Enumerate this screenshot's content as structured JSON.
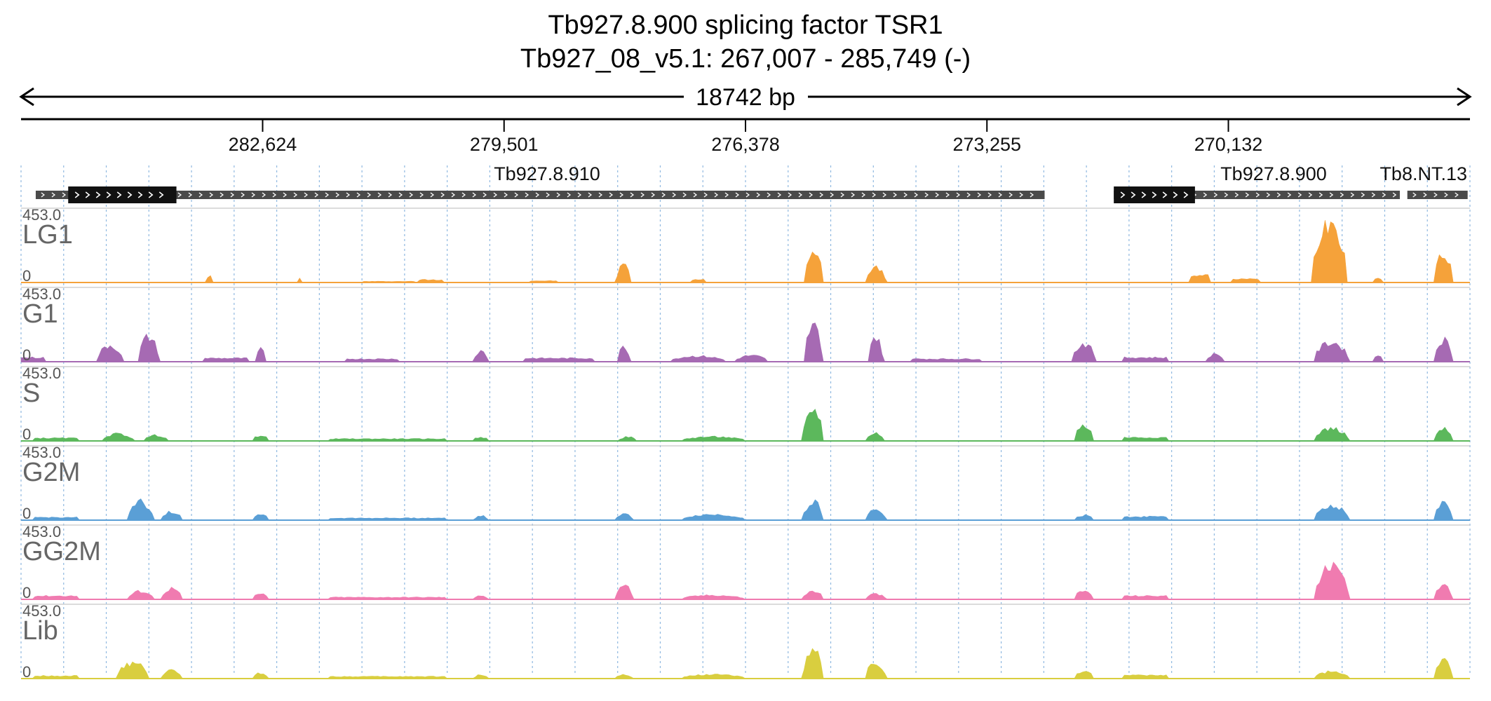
{
  "title": {
    "line1": "Tb927.8.900  splicing factor TSR1",
    "line2": "Tb927_08_v5.1: 267,007 - 285,749 (-)"
  },
  "span_label": "18742 bp",
  "region": {
    "start": 267007,
    "end": 285749,
    "strand": "-"
  },
  "ticks": [
    {
      "label": "282,624",
      "value": 282624
    },
    {
      "label": "279,501",
      "value": 279501
    },
    {
      "label": "276,378",
      "value": 276378
    },
    {
      "label": "273,255",
      "value": 273255
    },
    {
      "label": "270,132",
      "value": 270132
    }
  ],
  "genes": [
    {
      "name": "Tb927.8.910",
      "start": 272509,
      "end": 285559,
      "cds_start": 283739,
      "cds_end": 285139
    },
    {
      "name": "Tb927.8.900",
      "start": 267914,
      "end": 271614,
      "cds_start": 270564,
      "cds_end": 271614
    },
    {
      "name": "Tb8.NT.13",
      "start": 267037,
      "end": 267817
    }
  ],
  "colors": {
    "LG1": "#f5a23a",
    "G1": "#a66ab3",
    "S": "#5cb85c",
    "G2M": "#5a9fd6",
    "GG2M": "#f07bb0",
    "Lib": "#d9ce3f",
    "gene_body": "#4a4a4a",
    "cds": "#111111",
    "grid": "#8fb8e0"
  },
  "chart_data": {
    "type": "area",
    "x_label": "Genomic coordinate (bp), reverse strand",
    "x_range": [
      267007,
      285749
    ],
    "y_range": [
      0,
      453.0
    ],
    "scale_max_label": "453.0",
    "scale_min_label": "0",
    "series": [
      {
        "name": "LG1",
        "peaks": [
          {
            "pos": 283300,
            "width": 70,
            "height": 45,
            "shape": "block"
          },
          {
            "pos": 282150,
            "width": 60,
            "height": 30,
            "shape": "block"
          },
          {
            "pos": 281000,
            "width": 700,
            "height": 8,
            "shape": "flat"
          },
          {
            "pos": 280450,
            "width": 300,
            "height": 20,
            "shape": "flat"
          },
          {
            "pos": 279000,
            "width": 350,
            "height": 12,
            "shape": "flat"
          },
          {
            "pos": 277950,
            "width": 180,
            "height": 130,
            "shape": "round"
          },
          {
            "pos": 277000,
            "width": 180,
            "height": 20,
            "shape": "flat"
          },
          {
            "pos": 275500,
            "width": 230,
            "height": 230,
            "shape": "round"
          },
          {
            "pos": 274700,
            "width": 250,
            "height": 110,
            "shape": "round"
          },
          {
            "pos": 270500,
            "width": 250,
            "height": 50,
            "shape": "flat"
          },
          {
            "pos": 269900,
            "width": 350,
            "height": 25,
            "shape": "flat"
          },
          {
            "pos": 268820,
            "width": 420,
            "height": 453,
            "shape": "round"
          },
          {
            "pos": 268200,
            "width": 120,
            "height": 30,
            "shape": "flat"
          },
          {
            "pos": 267350,
            "width": 250,
            "height": 200,
            "shape": "round"
          }
        ]
      },
      {
        "name": "G1",
        "peaks": [
          {
            "pos": 285600,
            "width": 300,
            "height": 30,
            "shape": "flat"
          },
          {
            "pos": 284600,
            "width": 300,
            "height": 120,
            "shape": "round"
          },
          {
            "pos": 284100,
            "width": 250,
            "height": 180,
            "shape": "round"
          },
          {
            "pos": 283100,
            "width": 600,
            "height": 25,
            "shape": "flat"
          },
          {
            "pos": 282650,
            "width": 120,
            "height": 90,
            "shape": "round"
          },
          {
            "pos": 281200,
            "width": 700,
            "height": 20,
            "shape": "flat"
          },
          {
            "pos": 279800,
            "width": 160,
            "height": 80,
            "shape": "round"
          },
          {
            "pos": 278800,
            "width": 900,
            "height": 25,
            "shape": "flat"
          },
          {
            "pos": 277950,
            "width": 150,
            "height": 110,
            "shape": "round"
          },
          {
            "pos": 277000,
            "width": 700,
            "height": 40,
            "shape": "round"
          },
          {
            "pos": 276300,
            "width": 400,
            "height": 45,
            "shape": "round"
          },
          {
            "pos": 275500,
            "width": 220,
            "height": 260,
            "shape": "round"
          },
          {
            "pos": 274700,
            "width": 180,
            "height": 180,
            "shape": "round"
          },
          {
            "pos": 273800,
            "width": 900,
            "height": 20,
            "shape": "flat"
          },
          {
            "pos": 272000,
            "width": 280,
            "height": 130,
            "shape": "round"
          },
          {
            "pos": 271200,
            "width": 600,
            "height": 30,
            "shape": "flat"
          },
          {
            "pos": 270300,
            "width": 200,
            "height": 60,
            "shape": "round"
          },
          {
            "pos": 268800,
            "width": 420,
            "height": 140,
            "shape": "round"
          },
          {
            "pos": 268200,
            "width": 120,
            "height": 40,
            "shape": "flat"
          },
          {
            "pos": 267350,
            "width": 220,
            "height": 160,
            "shape": "round"
          }
        ]
      },
      {
        "name": "S",
        "peaks": [
          {
            "pos": 285300,
            "width": 600,
            "height": 20,
            "shape": "flat"
          },
          {
            "pos": 284500,
            "width": 400,
            "height": 50,
            "shape": "round"
          },
          {
            "pos": 284000,
            "width": 300,
            "height": 40,
            "shape": "round"
          },
          {
            "pos": 282650,
            "width": 200,
            "height": 30,
            "shape": "flat"
          },
          {
            "pos": 281000,
            "width": 1500,
            "height": 15,
            "shape": "flat"
          },
          {
            "pos": 279800,
            "width": 160,
            "height": 25,
            "shape": "flat"
          },
          {
            "pos": 277900,
            "width": 200,
            "height": 30,
            "shape": "round"
          },
          {
            "pos": 276800,
            "width": 800,
            "height": 30,
            "shape": "round"
          },
          {
            "pos": 275500,
            "width": 250,
            "height": 230,
            "shape": "round"
          },
          {
            "pos": 274700,
            "width": 200,
            "height": 60,
            "shape": "round"
          },
          {
            "pos": 272000,
            "width": 250,
            "height": 110,
            "shape": "round"
          },
          {
            "pos": 271200,
            "width": 600,
            "height": 25,
            "shape": "flat"
          },
          {
            "pos": 268800,
            "width": 420,
            "height": 90,
            "shape": "round"
          },
          {
            "pos": 267350,
            "width": 200,
            "height": 90,
            "shape": "round"
          }
        ]
      },
      {
        "name": "G2M",
        "peaks": [
          {
            "pos": 285300,
            "width": 600,
            "height": 20,
            "shape": "flat"
          },
          {
            "pos": 284200,
            "width": 300,
            "height": 130,
            "shape": "round"
          },
          {
            "pos": 283800,
            "width": 250,
            "height": 60,
            "shape": "round"
          },
          {
            "pos": 282650,
            "width": 200,
            "height": 40,
            "shape": "round"
          },
          {
            "pos": 281000,
            "width": 1500,
            "height": 15,
            "shape": "flat"
          },
          {
            "pos": 279800,
            "width": 160,
            "height": 35,
            "shape": "round"
          },
          {
            "pos": 277950,
            "width": 200,
            "height": 45,
            "shape": "round"
          },
          {
            "pos": 276800,
            "width": 800,
            "height": 40,
            "shape": "round"
          },
          {
            "pos": 275500,
            "width": 250,
            "height": 130,
            "shape": "round"
          },
          {
            "pos": 274700,
            "width": 250,
            "height": 70,
            "shape": "round"
          },
          {
            "pos": 272000,
            "width": 250,
            "height": 35,
            "shape": "round"
          },
          {
            "pos": 271200,
            "width": 600,
            "height": 25,
            "shape": "flat"
          },
          {
            "pos": 268800,
            "width": 420,
            "height": 110,
            "shape": "round"
          },
          {
            "pos": 267350,
            "width": 200,
            "height": 140,
            "shape": "round"
          }
        ]
      },
      {
        "name": "GG2M",
        "peaks": [
          {
            "pos": 285300,
            "width": 600,
            "height": 25,
            "shape": "flat"
          },
          {
            "pos": 284200,
            "width": 300,
            "height": 60,
            "shape": "round"
          },
          {
            "pos": 283800,
            "width": 250,
            "height": 80,
            "shape": "round"
          },
          {
            "pos": 282650,
            "width": 200,
            "height": 40,
            "shape": "round"
          },
          {
            "pos": 281000,
            "width": 1500,
            "height": 15,
            "shape": "flat"
          },
          {
            "pos": 279800,
            "width": 160,
            "height": 30,
            "shape": "round"
          },
          {
            "pos": 277950,
            "width": 200,
            "height": 110,
            "shape": "round"
          },
          {
            "pos": 276800,
            "width": 800,
            "height": 30,
            "shape": "round"
          },
          {
            "pos": 275500,
            "width": 250,
            "height": 60,
            "shape": "round"
          },
          {
            "pos": 274700,
            "width": 250,
            "height": 40,
            "shape": "round"
          },
          {
            "pos": 272000,
            "width": 250,
            "height": 60,
            "shape": "round"
          },
          {
            "pos": 271200,
            "width": 600,
            "height": 25,
            "shape": "flat"
          },
          {
            "pos": 268800,
            "width": 420,
            "height": 230,
            "shape": "round"
          },
          {
            "pos": 267350,
            "width": 200,
            "height": 120,
            "shape": "round"
          }
        ]
      },
      {
        "name": "Lib",
        "peaks": [
          {
            "pos": 285300,
            "width": 600,
            "height": 20,
            "shape": "flat"
          },
          {
            "pos": 284300,
            "width": 400,
            "height": 110,
            "shape": "round"
          },
          {
            "pos": 283800,
            "width": 250,
            "height": 60,
            "shape": "round"
          },
          {
            "pos": 282650,
            "width": 200,
            "height": 40,
            "shape": "round"
          },
          {
            "pos": 281000,
            "width": 1500,
            "height": 15,
            "shape": "flat"
          },
          {
            "pos": 279800,
            "width": 160,
            "height": 30,
            "shape": "round"
          },
          {
            "pos": 277950,
            "width": 200,
            "height": 30,
            "shape": "round"
          },
          {
            "pos": 276800,
            "width": 800,
            "height": 30,
            "shape": "round"
          },
          {
            "pos": 275500,
            "width": 250,
            "height": 200,
            "shape": "round"
          },
          {
            "pos": 274700,
            "width": 250,
            "height": 110,
            "shape": "round"
          },
          {
            "pos": 272000,
            "width": 250,
            "height": 50,
            "shape": "round"
          },
          {
            "pos": 271200,
            "width": 600,
            "height": 25,
            "shape": "flat"
          },
          {
            "pos": 268800,
            "width": 420,
            "height": 50,
            "shape": "round"
          },
          {
            "pos": 267350,
            "width": 200,
            "height": 140,
            "shape": "round"
          }
        ]
      }
    ]
  }
}
